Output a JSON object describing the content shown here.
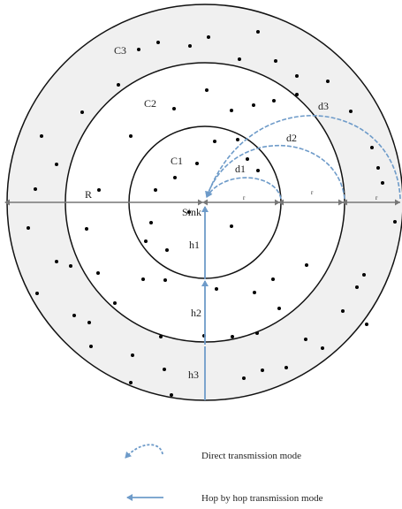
{
  "diagram": {
    "ring_labels": {
      "c1": "C1",
      "c2": "C2",
      "c3": "C3"
    },
    "radius_label": "R",
    "sink_label": "Sink",
    "distance_labels": {
      "d1": "d1",
      "d2": "d2",
      "d3": "d3"
    },
    "hop_labels": {
      "h1": "h1",
      "h2": "h2",
      "h3": "h3"
    },
    "segment_label": "r",
    "colors": {
      "outer_ring_fill": "#f0f0f0",
      "middle_ring_fill": "#ffffff",
      "circle_stroke": "#111111",
      "arrow_blue": "#6e9bc9",
      "axis_gray": "#777777",
      "node": "#000000"
    }
  },
  "legend": {
    "direct_label": "Direct transmission mode",
    "hop_label": "Hop by hop transmission mode",
    "direct_icon": "dashed-curved-arrow-icon",
    "hop_icon": "straight-arrow-icon"
  }
}
